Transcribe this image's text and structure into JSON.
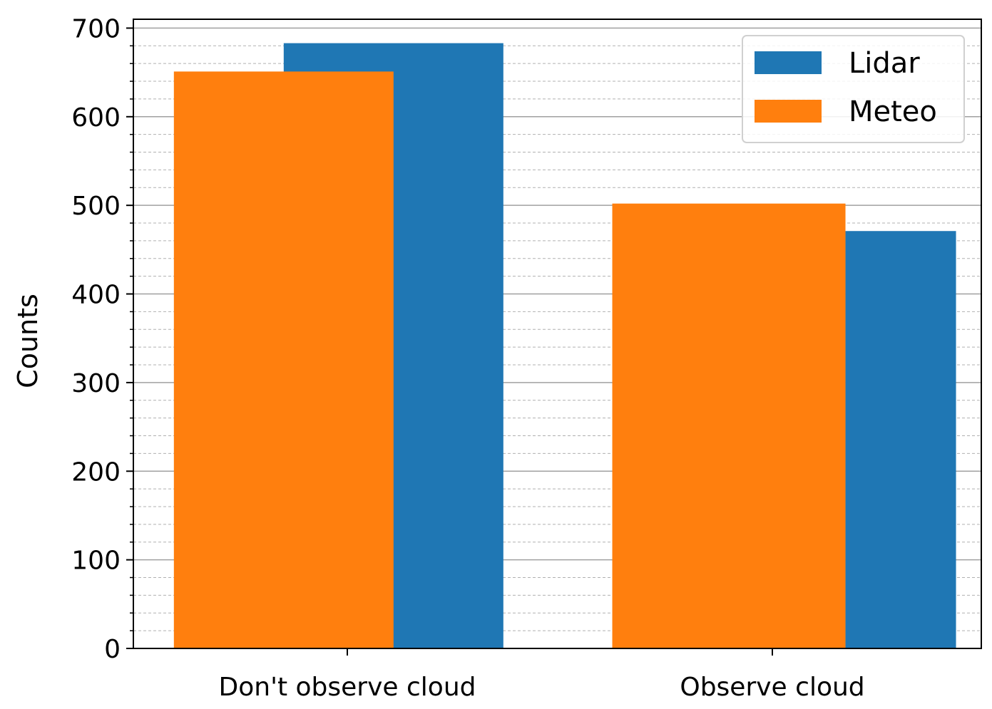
{
  "chart_data": {
    "type": "bar",
    "categories": [
      "Don't observe cloud",
      "Observe cloud"
    ],
    "series": [
      {
        "name": "Meteo",
        "color": "#ff7f0e",
        "values": [
          651,
          502
        ]
      },
      {
        "name": "Lidar",
        "color": "#1f77b4",
        "values": [
          683,
          471
        ]
      }
    ],
    "ylabel": "Counts",
    "ylim": [
      0,
      710
    ],
    "yticks": [
      0,
      100,
      200,
      300,
      400,
      500,
      600,
      700
    ],
    "minor_tick_step": 20,
    "grid": true,
    "legend": {
      "position": "top-right",
      "order": [
        "Lidar",
        "Meteo"
      ]
    }
  }
}
